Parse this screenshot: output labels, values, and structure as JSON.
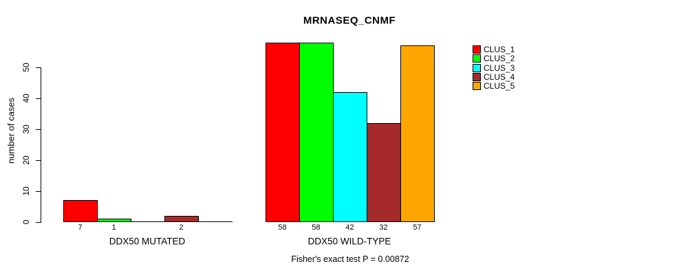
{
  "chart_data": {
    "type": "bar",
    "title": "MRNASEQ_CNMF",
    "ylabel": "number of cases",
    "yticks": [
      0,
      10,
      20,
      30,
      40,
      50
    ],
    "ylim": [
      0,
      58
    ],
    "grid": false,
    "legend": {
      "position": "right",
      "entries": [
        {
          "label": "CLUS_1",
          "color": "#ff0000"
        },
        {
          "label": "CLUS_2",
          "color": "#00ff00"
        },
        {
          "label": "CLUS_3",
          "color": "#00ffff"
        },
        {
          "label": "CLUS_4",
          "color": "#a52a2a"
        },
        {
          "label": "CLUS_5",
          "color": "#ffa500"
        }
      ]
    },
    "groups": [
      {
        "label": "DDX50 MUTATED",
        "values": [
          7,
          1,
          0,
          2,
          0
        ]
      },
      {
        "label": "DDX50 WILD-TYPE",
        "values": [
          58,
          58,
          42,
          32,
          57
        ]
      }
    ],
    "caption": "Fisher's exact test P = 0.00872"
  }
}
